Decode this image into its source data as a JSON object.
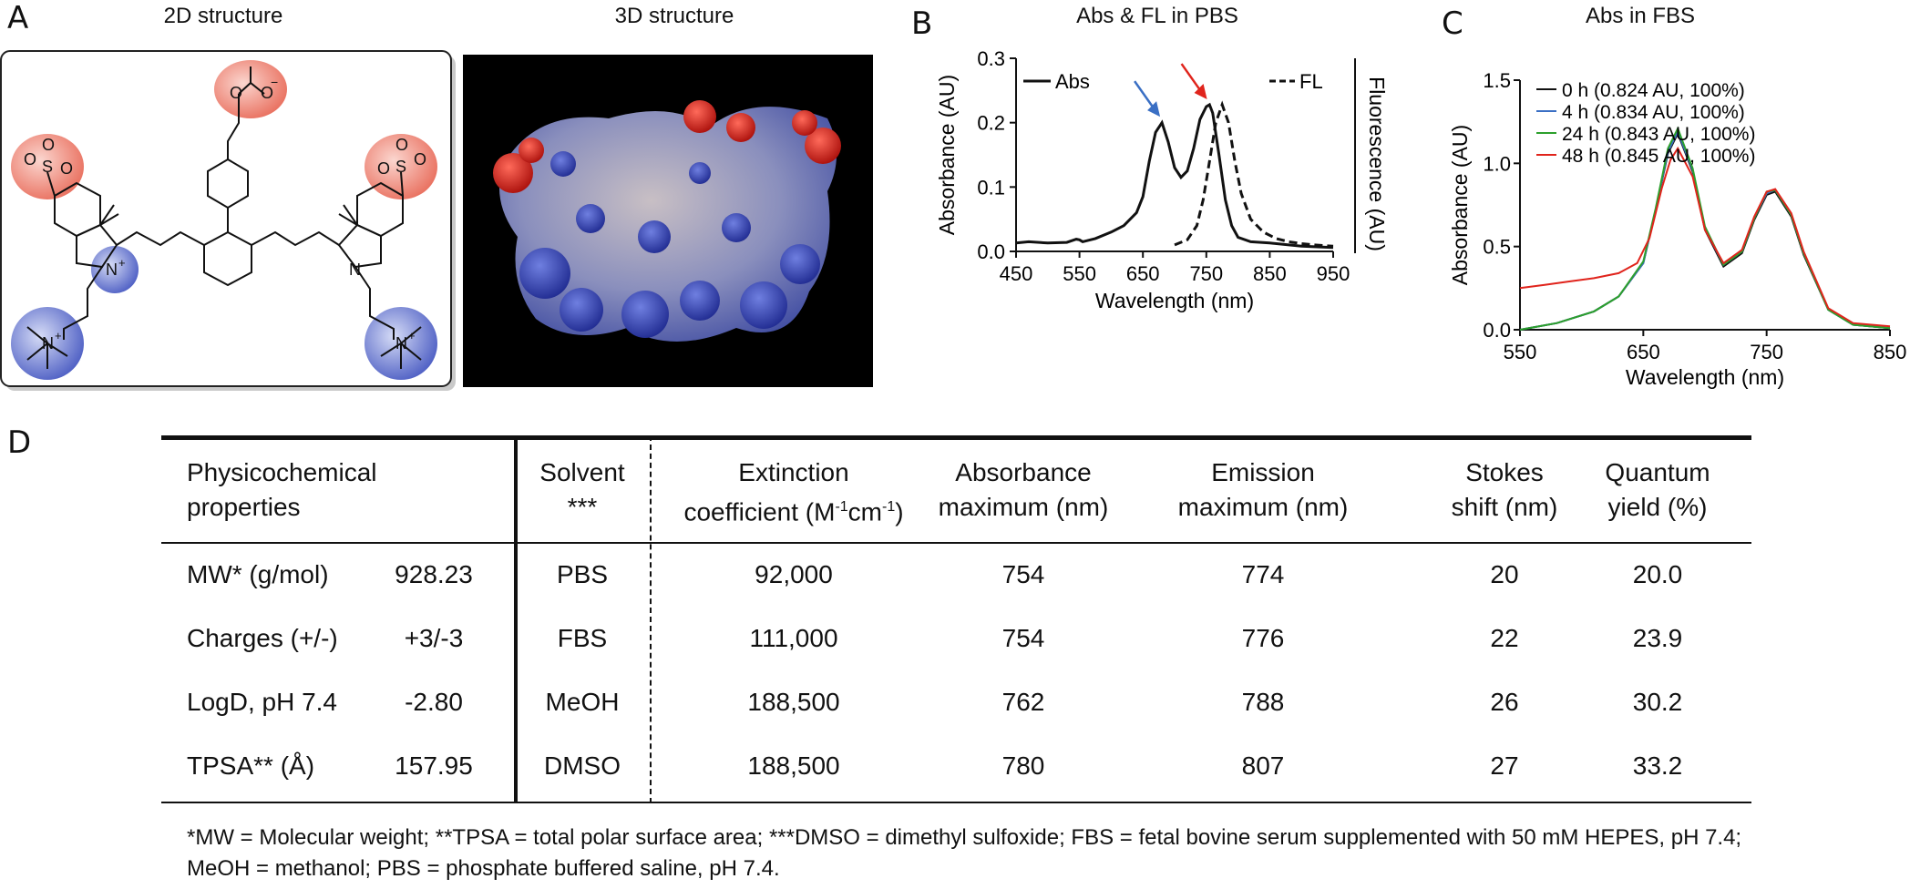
{
  "panels": {
    "A": {
      "letter": "A",
      "title_2d": "2D structure",
      "title_3d": "3D structure"
    },
    "B": {
      "letter": "B",
      "title": "Abs & FL in PBS"
    },
    "C": {
      "letter": "C",
      "title": "Abs in FBS"
    },
    "D": {
      "letter": "D"
    }
  },
  "structure_labels": {
    "sulfonate": "S",
    "oxygen": "O",
    "nitrogen": "N",
    "plus": "+",
    "minus": "−"
  },
  "chart_data": [
    {
      "type": "line",
      "title": "Abs & FL in PBS",
      "xlabel": "Wavelength (nm)",
      "ylabel": "Absorbance (AU)",
      "y2label": "Fluorescence (AU)",
      "xlim": [
        450,
        950
      ],
      "ylim": [
        0,
        0.3
      ],
      "xticks": [
        "450",
        "550",
        "650",
        "750",
        "850",
        "950"
      ],
      "yticks": [
        "0.0",
        "0.1",
        "0.2",
        "0.3"
      ],
      "legend": [
        {
          "name": "Abs",
          "style": "solid"
        },
        {
          "name": "FL",
          "style": "dashed"
        }
      ],
      "arrows": [
        {
          "color": "#3a6fc4",
          "x": 680
        },
        {
          "color": "#e0241c",
          "x": 754
        }
      ],
      "series": [
        {
          "name": "Abs",
          "style": "solid",
          "color": "#111111",
          "x": [
            450,
            470,
            500,
            530,
            545,
            550,
            555,
            575,
            600,
            620,
            640,
            650,
            660,
            670,
            680,
            690,
            700,
            710,
            720,
            730,
            740,
            750,
            755,
            760,
            770,
            780,
            790,
            800,
            820,
            850,
            900,
            950
          ],
          "y": [
            0.013,
            0.015,
            0.013,
            0.014,
            0.019,
            0.018,
            0.015,
            0.02,
            0.03,
            0.04,
            0.06,
            0.085,
            0.14,
            0.185,
            0.2,
            0.17,
            0.13,
            0.115,
            0.125,
            0.16,
            0.205,
            0.225,
            0.228,
            0.215,
            0.15,
            0.08,
            0.04,
            0.022,
            0.015,
            0.013,
            0.008,
            0.006
          ]
        },
        {
          "name": "FL",
          "style": "dashed",
          "color": "#111111",
          "x": [
            700,
            720,
            735,
            745,
            755,
            765,
            775,
            785,
            795,
            805,
            820,
            840,
            860,
            880,
            900,
            920,
            950
          ],
          "y": [
            0.01,
            0.018,
            0.04,
            0.08,
            0.14,
            0.2,
            0.228,
            0.2,
            0.14,
            0.09,
            0.05,
            0.03,
            0.02,
            0.015,
            0.012,
            0.01,
            0.008
          ]
        }
      ]
    },
    {
      "type": "line",
      "title": "Abs in FBS",
      "xlabel": "Wavelength (nm)",
      "ylabel": "Absorbance (AU)",
      "xlim": [
        550,
        850
      ],
      "ylim": [
        0,
        1.5
      ],
      "xticks": [
        "550",
        "650",
        "750",
        "850"
      ],
      "yticks": [
        "0.0",
        "0.5",
        "1.0",
        "1.5"
      ],
      "legend_position": "top-right",
      "series": [
        {
          "name": "0 h (0.824 AU, 100%)",
          "color": "#111111",
          "x": [
            550,
            580,
            610,
            630,
            650,
            660,
            670,
            678,
            690,
            700,
            715,
            730,
            740,
            750,
            757,
            770,
            780,
            800,
            820,
            850
          ],
          "y": [
            0.0,
            0.04,
            0.11,
            0.2,
            0.4,
            0.72,
            1.06,
            1.18,
            0.95,
            0.6,
            0.38,
            0.46,
            0.66,
            0.81,
            0.83,
            0.68,
            0.45,
            0.12,
            0.03,
            0.01
          ]
        },
        {
          "name": "4 h (0.834 AU, 100%)",
          "color": "#3a6fc4",
          "x": [
            550,
            580,
            610,
            630,
            650,
            660,
            670,
            678,
            690,
            700,
            715,
            730,
            740,
            750,
            757,
            770,
            780,
            800,
            820,
            850
          ],
          "y": [
            0.0,
            0.04,
            0.11,
            0.2,
            0.4,
            0.72,
            1.07,
            1.19,
            0.96,
            0.61,
            0.39,
            0.47,
            0.67,
            0.82,
            0.84,
            0.69,
            0.46,
            0.12,
            0.03,
            0.01
          ]
        },
        {
          "name": "24 h (0.843 AU, 100%)",
          "color": "#2ca02c",
          "x": [
            550,
            580,
            610,
            630,
            650,
            660,
            670,
            678,
            690,
            700,
            715,
            730,
            740,
            750,
            757,
            770,
            780,
            800,
            820,
            850
          ],
          "y": [
            0.0,
            0.04,
            0.11,
            0.2,
            0.41,
            0.73,
            1.09,
            1.21,
            0.97,
            0.62,
            0.39,
            0.47,
            0.67,
            0.83,
            0.84,
            0.69,
            0.46,
            0.12,
            0.03,
            0.01
          ]
        },
        {
          "name": "48 h (0.845 AU, 100%)",
          "color": "#e0241c",
          "x": [
            550,
            570,
            590,
            610,
            630,
            645,
            655,
            665,
            672,
            678,
            690,
            700,
            715,
            730,
            740,
            750,
            757,
            770,
            780,
            800,
            820,
            850
          ],
          "y": [
            0.25,
            0.27,
            0.29,
            0.31,
            0.34,
            0.4,
            0.55,
            0.85,
            1.02,
            1.09,
            0.92,
            0.6,
            0.4,
            0.48,
            0.68,
            0.83,
            0.845,
            0.7,
            0.47,
            0.13,
            0.04,
            0.02
          ]
        }
      ]
    }
  ],
  "table": {
    "headers": {
      "physico": [
        "Physicochemical",
        "properties"
      ],
      "solvent": [
        "Solvent",
        "***"
      ],
      "extinction": [
        "Extinction",
        "coefficient (M",
        "-1",
        "cm",
        "-1",
        ")"
      ],
      "absmax": [
        "Absorbance",
        "maximum (nm)"
      ],
      "emmax": [
        "Emission",
        "maximum (nm)"
      ],
      "stokes": [
        "Stokes",
        "shift (nm)"
      ],
      "qy": [
        "Quantum",
        "yield (%)"
      ]
    },
    "rows": [
      {
        "prop": "MW* (g/mol)",
        "val": "928.23",
        "solvent": "PBS",
        "ext": "92,000",
        "abs": "754",
        "em": "774",
        "stokes": "20",
        "qy": "20.0"
      },
      {
        "prop": "Charges (+/-)",
        "val": "+3/-3",
        "solvent": "FBS",
        "ext": "111,000",
        "abs": "754",
        "em": "776",
        "stokes": "22",
        "qy": "23.9"
      },
      {
        "prop": "LogD, pH 7.4",
        "val": "-2.80",
        "solvent": "MeOH",
        "ext": "188,500",
        "abs": "762",
        "em": "788",
        "stokes": "26",
        "qy": "30.2"
      },
      {
        "prop": "TPSA** (Å)",
        "val": "157.95",
        "solvent": "DMSO",
        "ext": "188,500",
        "abs": "780",
        "em": "807",
        "stokes": "27",
        "qy": "33.2"
      }
    ]
  },
  "footnote": "*MW = Molecular weight; **TPSA = total polar surface area; ***DMSO = dimethyl sulfoxide; FBS = fetal bovine serum supplemented with 50 mM HEPES, pH 7.4; MeOH = methanol; PBS = phosphate buffered saline, pH 7.4."
}
